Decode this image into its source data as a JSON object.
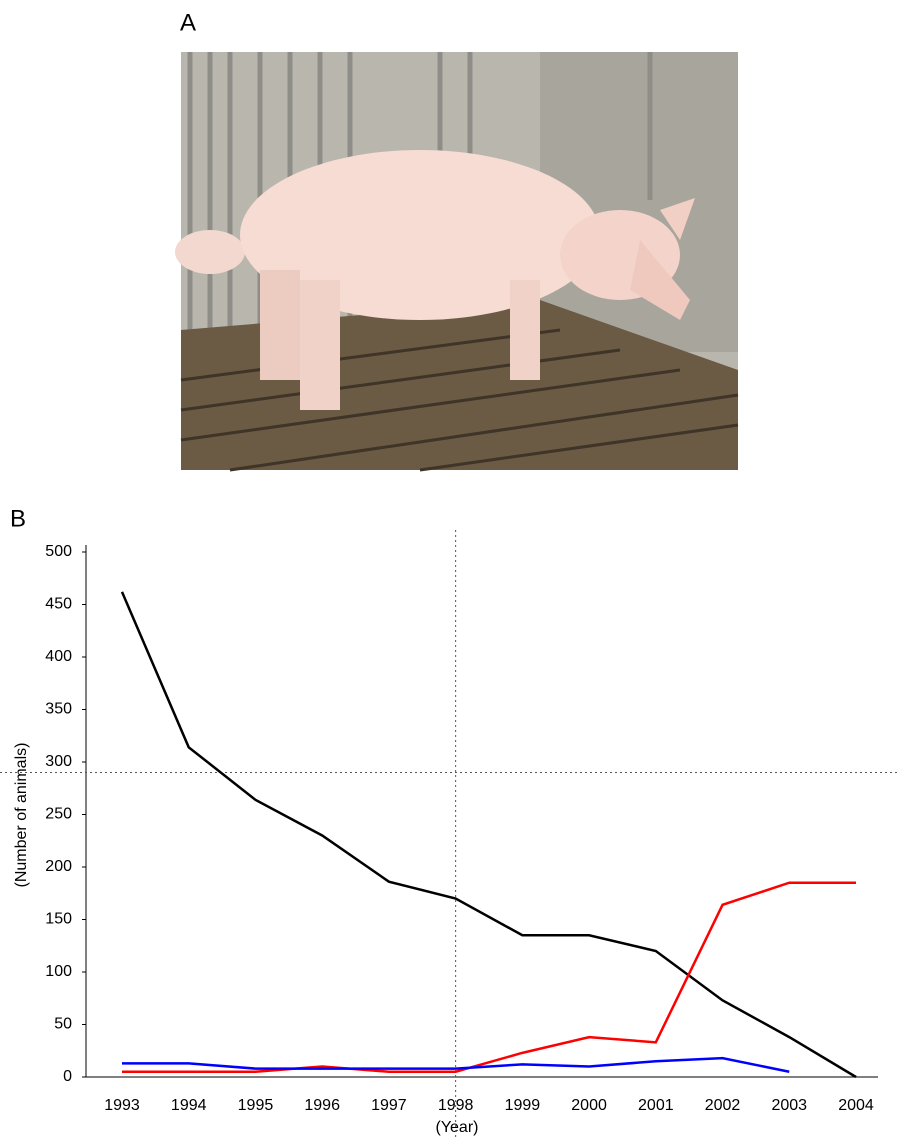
{
  "figure": {
    "panel_a": {
      "label": "A"
    },
    "panel_b": {
      "label": "B"
    }
  },
  "chart_data": {
    "type": "line",
    "ylabel": "(Number of animals)",
    "xlabel": "(Year)",
    "categories": [
      "1993",
      "1994",
      "1995",
      "1996",
      "1997",
      "1998",
      "1999",
      "2000",
      "2001",
      "2002",
      "2003",
      "2004"
    ],
    "series": [
      {
        "color": "#000000",
        "values": [
          462,
          314,
          264,
          230,
          186,
          170,
          135,
          135,
          120,
          73,
          38,
          0
        ]
      },
      {
        "color": "#ff0000",
        "values": [
          5,
          5,
          5,
          10,
          5,
          5,
          23,
          38,
          33,
          164,
          185,
          185
        ]
      },
      {
        "color": "#0000ff",
        "values": [
          13,
          13,
          8,
          8,
          8,
          8,
          12,
          10,
          15,
          18,
          5,
          null
        ]
      }
    ],
    "ylim": [
      0,
      500
    ],
    "yticks": [
      0,
      50,
      100,
      150,
      200,
      250,
      300,
      350,
      400,
      450,
      500
    ],
    "vline": "1998",
    "hline": 290,
    "grid": false
  }
}
